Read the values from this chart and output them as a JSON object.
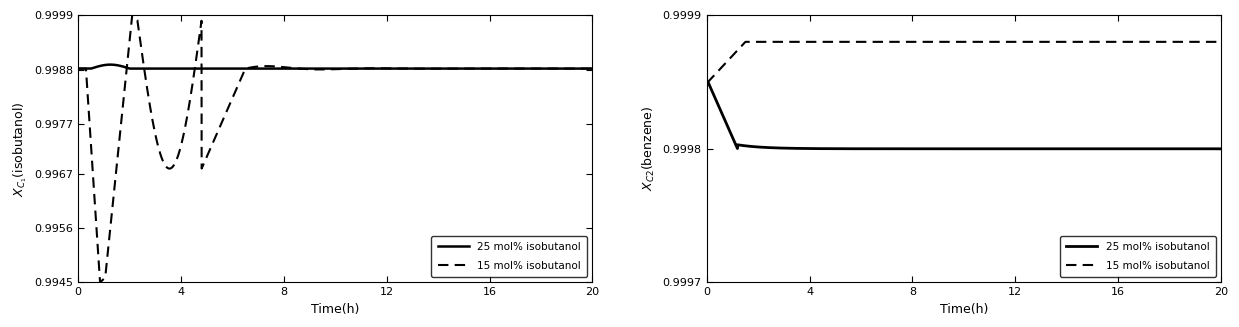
{
  "plot1": {
    "ylabel": "$X_{C_1}$(isobutanol)",
    "xlabel": "Time(h)",
    "xlim": [
      0,
      20
    ],
    "ylim": [
      0.9945,
      0.9999
    ],
    "yticks": [
      0.9945,
      0.9956,
      0.9967,
      0.9977,
      0.9988,
      0.9999
    ],
    "xticks": [
      0,
      4,
      8,
      12,
      16,
      20
    ],
    "steady": 0.99882,
    "legend": [
      "25 mol% isobutanol",
      "15 mol% isobutanol"
    ]
  },
  "plot2": {
    "ylabel": "$X_{C2}$(benzene)",
    "xlabel": "Time(h)",
    "xlim": [
      0,
      20
    ],
    "ylim": [
      0.9997,
      0.9999
    ],
    "yticks": [
      0.9997,
      0.9998,
      0.9999
    ],
    "xticks": [
      0,
      4,
      8,
      12,
      16,
      20
    ],
    "legend": [
      "25 mol% isobutanol",
      "15 mol% isobutanol"
    ]
  },
  "line_color": "#000000",
  "bg_color": "#ffffff",
  "legend_fontsize": 7.5,
  "tick_fontsize": 8,
  "label_fontsize": 9
}
